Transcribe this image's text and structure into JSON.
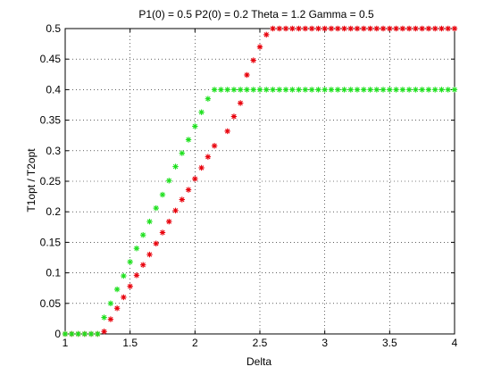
{
  "chart_data": {
    "type": "scatter",
    "title": "P1(0) = 0.5 P2(0) = 0.2 Theta = 1.2 Gamma = 0.5",
    "xlabel": "Delta",
    "ylabel": "T1opt / T2opt",
    "xlim": [
      1,
      4
    ],
    "ylim": [
      0,
      0.5
    ],
    "xticks": [
      "1",
      "1.5",
      "2",
      "2.5",
      "3",
      "3.5",
      "4"
    ],
    "yticks": [
      "0",
      "0.05",
      "0.1",
      "0.15",
      "0.2",
      "0.25",
      "0.3",
      "0.35",
      "0.4",
      "0.45",
      "0.5"
    ],
    "grid": true,
    "marker": "asterisk",
    "colors": {
      "red": "#e8000b",
      "green": "#1ee01e"
    },
    "series": [
      {
        "color": "#e8000b",
        "points": [
          [
            1.0,
            0
          ],
          [
            1.05,
            0
          ],
          [
            1.1,
            0
          ],
          [
            1.15,
            0
          ],
          [
            1.2,
            0
          ],
          [
            1.25,
            0
          ],
          [
            1.3,
            0.004
          ],
          [
            1.35,
            0.024
          ],
          [
            1.4,
            0.042
          ],
          [
            1.45,
            0.06
          ],
          [
            1.5,
            0.078
          ],
          [
            1.55,
            0.096
          ],
          [
            1.6,
            0.113
          ],
          [
            1.65,
            0.13
          ],
          [
            1.7,
            0.148
          ],
          [
            1.75,
            0.166
          ],
          [
            1.8,
            0.184
          ],
          [
            1.85,
            0.202
          ],
          [
            1.9,
            0.22
          ],
          [
            1.95,
            0.236
          ],
          [
            2.0,
            0.254
          ],
          [
            2.05,
            0.272
          ],
          [
            2.1,
            0.29
          ],
          [
            2.15,
            0.308
          ],
          [
            2.25,
            0.332
          ],
          [
            2.3,
            0.356
          ],
          [
            2.35,
            0.378
          ],
          [
            2.4,
            0.424
          ],
          [
            2.45,
            0.448
          ],
          [
            2.5,
            0.47
          ],
          [
            2.55,
            0.49
          ],
          [
            2.6,
            0.5
          ],
          [
            2.65,
            0.5
          ],
          [
            2.7,
            0.5
          ],
          [
            2.75,
            0.5
          ],
          [
            2.8,
            0.5
          ],
          [
            2.85,
            0.5
          ],
          [
            2.9,
            0.5
          ],
          [
            2.95,
            0.5
          ],
          [
            3.0,
            0.5
          ],
          [
            3.05,
            0.5
          ],
          [
            3.1,
            0.5
          ],
          [
            3.15,
            0.5
          ],
          [
            3.2,
            0.5
          ],
          [
            3.25,
            0.5
          ],
          [
            3.3,
            0.5
          ],
          [
            3.35,
            0.5
          ],
          [
            3.4,
            0.5
          ],
          [
            3.45,
            0.5
          ],
          [
            3.5,
            0.5
          ],
          [
            3.55,
            0.5
          ],
          [
            3.6,
            0.5
          ],
          [
            3.65,
            0.5
          ],
          [
            3.7,
            0.5
          ],
          [
            3.75,
            0.5
          ],
          [
            3.8,
            0.5
          ],
          [
            3.85,
            0.5
          ],
          [
            3.9,
            0.5
          ],
          [
            3.95,
            0.5
          ],
          [
            4.0,
            0.5
          ]
        ]
      },
      {
        "color": "#1ee01e",
        "points": [
          [
            1.0,
            0
          ],
          [
            1.05,
            0
          ],
          [
            1.1,
            0
          ],
          [
            1.15,
            0
          ],
          [
            1.2,
            0
          ],
          [
            1.25,
            0
          ],
          [
            1.3,
            0.027
          ],
          [
            1.35,
            0.05
          ],
          [
            1.4,
            0.073
          ],
          [
            1.45,
            0.095
          ],
          [
            1.5,
            0.118
          ],
          [
            1.55,
            0.14
          ],
          [
            1.6,
            0.162
          ],
          [
            1.65,
            0.184
          ],
          [
            1.7,
            0.206
          ],
          [
            1.75,
            0.228
          ],
          [
            1.8,
            0.251
          ],
          [
            1.85,
            0.274
          ],
          [
            1.9,
            0.296
          ],
          [
            1.95,
            0.318
          ],
          [
            2.0,
            0.34
          ],
          [
            2.05,
            0.363
          ],
          [
            2.1,
            0.385
          ],
          [
            2.15,
            0.4
          ],
          [
            2.2,
            0.4
          ],
          [
            2.25,
            0.4
          ],
          [
            2.3,
            0.4
          ],
          [
            2.35,
            0.4
          ],
          [
            2.4,
            0.4
          ],
          [
            2.45,
            0.4
          ],
          [
            2.5,
            0.4
          ],
          [
            2.55,
            0.4
          ],
          [
            2.6,
            0.4
          ],
          [
            2.65,
            0.4
          ],
          [
            2.7,
            0.4
          ],
          [
            2.75,
            0.4
          ],
          [
            2.8,
            0.4
          ],
          [
            2.85,
            0.4
          ],
          [
            2.9,
            0.4
          ],
          [
            2.95,
            0.4
          ],
          [
            3.0,
            0.4
          ],
          [
            3.05,
            0.4
          ],
          [
            3.1,
            0.4
          ],
          [
            3.15,
            0.4
          ],
          [
            3.2,
            0.4
          ],
          [
            3.25,
            0.4
          ],
          [
            3.3,
            0.4
          ],
          [
            3.35,
            0.4
          ],
          [
            3.4,
            0.4
          ],
          [
            3.45,
            0.4
          ],
          [
            3.5,
            0.4
          ],
          [
            3.55,
            0.4
          ],
          [
            3.6,
            0.4
          ],
          [
            3.65,
            0.4
          ],
          [
            3.7,
            0.4
          ],
          [
            3.75,
            0.4
          ],
          [
            3.8,
            0.4
          ],
          [
            3.85,
            0.4
          ],
          [
            3.9,
            0.4
          ],
          [
            3.95,
            0.4
          ],
          [
            4.0,
            0.4
          ]
        ]
      }
    ]
  }
}
